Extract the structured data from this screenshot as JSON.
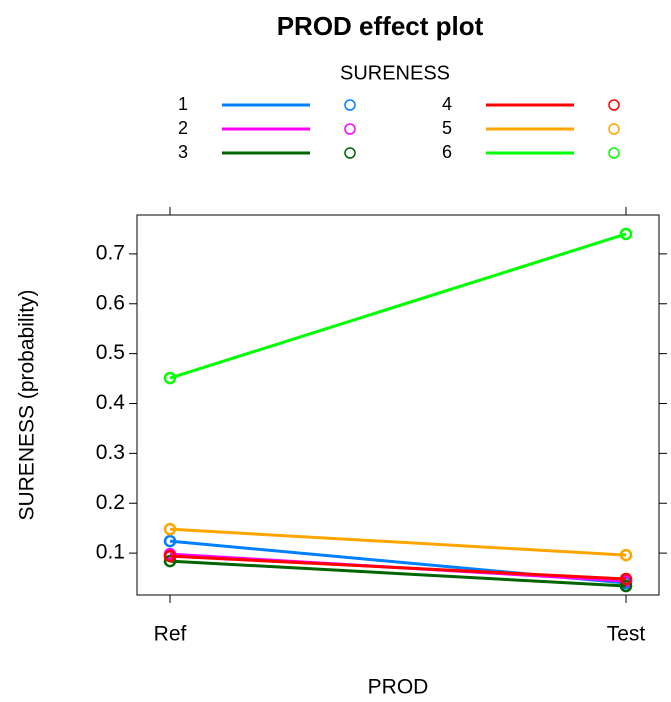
{
  "chart_data": {
    "type": "line",
    "title": "PROD effect plot",
    "legend_title": "SURENESS",
    "x_label": "PROD",
    "y_label": "SURENESS (probability)",
    "categories": [
      "Ref",
      "Test"
    ],
    "series": [
      {
        "name": "1",
        "color": "#0080ff",
        "values": [
          0.124,
          0.04
        ]
      },
      {
        "name": "2",
        "color": "#ff00ff",
        "values": [
          0.098,
          0.044
        ]
      },
      {
        "name": "3",
        "color": "#006400",
        "values": [
          0.084,
          0.034
        ]
      },
      {
        "name": "4",
        "color": "#ff0000",
        "values": [
          0.094,
          0.048
        ]
      },
      {
        "name": "5",
        "color": "#ffa500",
        "values": [
          0.148,
          0.096
        ]
      },
      {
        "name": "6",
        "color": "#00ff00",
        "values": [
          0.451,
          0.74
        ]
      }
    ],
    "ylim": [
      0.016,
      0.778
    ],
    "yticks": [
      0.1,
      0.2,
      0.3,
      0.4,
      0.5,
      0.6,
      0.7
    ]
  }
}
